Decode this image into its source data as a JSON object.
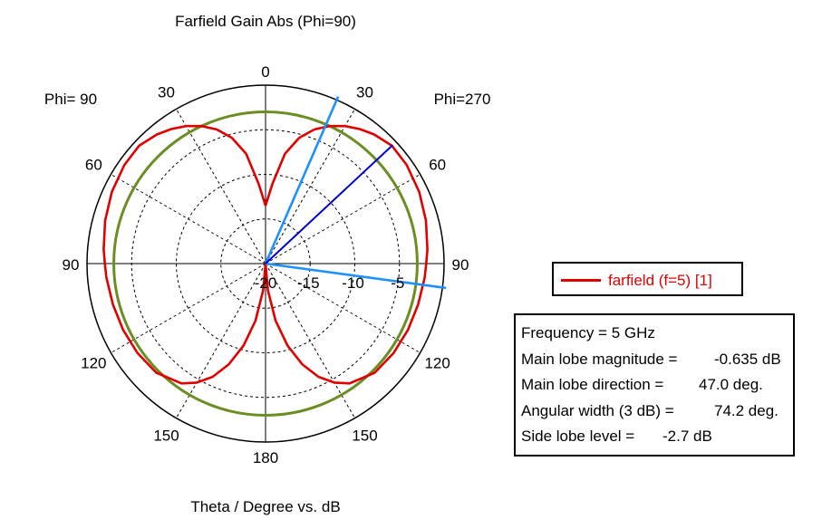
{
  "chart_data": {
    "type": "polar",
    "title": "Farfield Gain Abs (Phi=90)",
    "xlabel": "Theta / Degree vs. dB",
    "left_label": "Phi= 90",
    "right_label": "Phi=270",
    "angle_labels": [
      "0",
      "30",
      "60",
      "90",
      "120",
      "150",
      "180"
    ],
    "radial_ticks": [
      "-20",
      "-15",
      "-10",
      "-5"
    ],
    "radial_range_db": [
      -20,
      0
    ],
    "radial_grid_db": [
      -15,
      -10,
      -5
    ],
    "angular_grid_step_deg": 30,
    "series": [
      {
        "name": "farfield (f=5) [1]",
        "color": "#e00000",
        "theta_deg": [
          0,
          5,
          10,
          15,
          20,
          25,
          30,
          35,
          40,
          47,
          55,
          65,
          75,
          85,
          90,
          95,
          105,
          115,
          125,
          135,
          145,
          150,
          155,
          160,
          165,
          170,
          175,
          180
        ],
        "gain_db": [
          -13.5,
          -11,
          -7.5,
          -5.4,
          -4.0,
          -3.0,
          -2.2,
          -1.6,
          -1.1,
          -0.635,
          -0.7,
          -1.0,
          -1.4,
          -1.8,
          -2.0,
          -2.1,
          -2.3,
          -2.4,
          -2.5,
          -2.7,
          -3.6,
          -4.6,
          -6.0,
          -8.0,
          -10.5,
          -13.5,
          -17.0,
          -20
        ]
      }
    ],
    "reference_circle_db": -3.0,
    "reference_circle_color": "#6b8e23",
    "main_lobe_direction_deg": 47.0,
    "beamwidth_edges_deg": [
      23.5,
      97.7
    ],
    "main_lobe_line_color": "#0000cc",
    "beam_edge_line_color": "#1e90ff",
    "legend_placement": "right"
  },
  "legend": {
    "label": "farfield (f=5) [1]",
    "color": "#e00000"
  },
  "info": {
    "frequency_key": "Frequency = 5 GHz",
    "main_lobe_mag_key": "Main lobe magnitude =",
    "main_lobe_mag_val": "-0.635 dB",
    "main_lobe_dir_key": "Main lobe direction =",
    "main_lobe_dir_val": "47.0 deg.",
    "angular_width_key": "Angular width (3 dB) =",
    "angular_width_val": "74.2 deg.",
    "side_lobe_key": "Side lobe level =",
    "side_lobe_val": "-2.7 dB"
  }
}
